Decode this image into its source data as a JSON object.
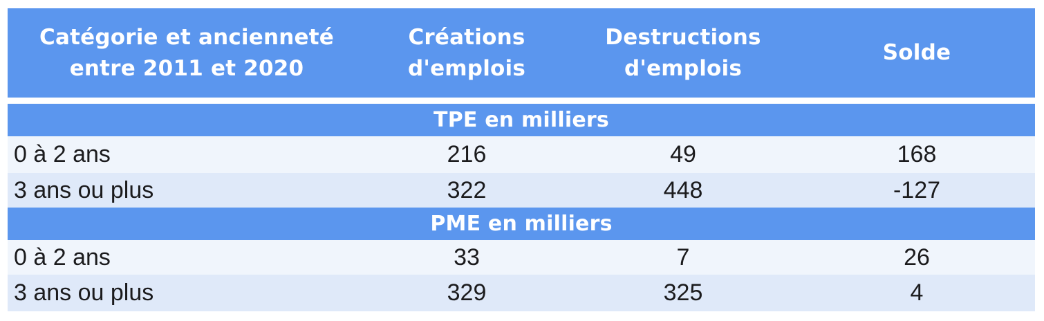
{
  "chart_data": {
    "type": "table",
    "header": {
      "category": "Catégorie et ancienneté\nentre 2011 et 2020",
      "creations": "Créations\nd'emplois",
      "destructions": "Destructions\nd'emplois",
      "solde": "Solde"
    },
    "sections": [
      {
        "title": "TPE en milliers",
        "rows": [
          {
            "label": "0 à 2 ans",
            "creations": 216,
            "destructions": 49,
            "solde": 168
          },
          {
            "label": "3 ans ou plus",
            "creations": 322,
            "destructions": 448,
            "solde": -127
          }
        ]
      },
      {
        "title": "PME en milliers",
        "rows": [
          {
            "label": "0 à 2 ans",
            "creations": 33,
            "destructions": 7,
            "solde": 26
          },
          {
            "label": "3 ans ou plus",
            "creations": 329,
            "destructions": 325,
            "solde": 4
          }
        ]
      }
    ]
  },
  "colors": {
    "header_blue": "#5b96ee",
    "section_blue": "#5b96ee",
    "row_light": "#f0f5fc",
    "row_shaded": "#dfe9f9",
    "header_text": "#ffffff",
    "body_text": "#1b1b1d",
    "background": "#ffffff"
  }
}
